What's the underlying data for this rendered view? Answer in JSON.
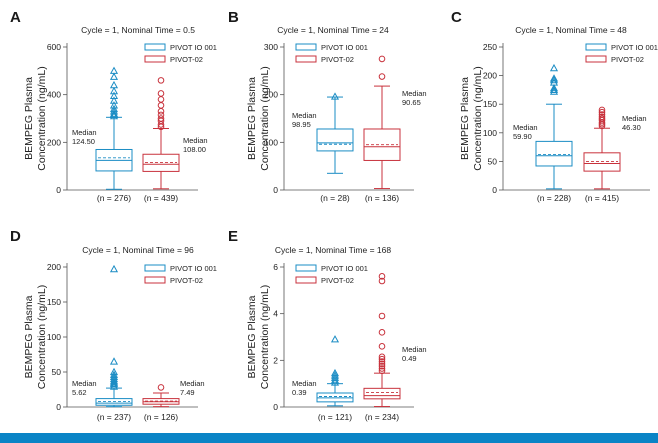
{
  "figure": {
    "accent_bar_color": "#0a84c6"
  },
  "colors": {
    "pivot_io_001": "#1a8cc4",
    "pivot_02": "#c8323c"
  },
  "chart_data": [
    {
      "type": "box",
      "panel_label": "A",
      "title": "Cycle = 1, Nominal Time = 0.5",
      "ylabel": [
        "BEMPEG Plasma",
        "Concentration (ng/mL)"
      ],
      "ylim": [
        0,
        600
      ],
      "yticks": [
        0,
        200,
        400,
        600
      ],
      "legend": [
        "PIVOT IO 001",
        "PIVOT-02"
      ],
      "series": [
        {
          "name": "PIVOT IO 001",
          "n_label": "(n = 276)",
          "median_label": [
            "Median",
            "124.50"
          ],
          "whisker_low": 3,
          "q1": 80,
          "median": 124.5,
          "mean": 135,
          "q3": 170,
          "whisker_high": 305,
          "outliers": [
            310,
            315,
            320,
            330,
            340,
            355,
            375,
            395,
            415,
            440,
            475,
            500
          ]
        },
        {
          "name": "PIVOT-02",
          "n_label": "(n = 439)",
          "median_label": [
            "Median",
            "108.00"
          ],
          "whisker_low": 5,
          "q1": 78,
          "median": 108,
          "mean": 115,
          "q3": 150,
          "whisker_high": 258,
          "outliers": [
            265,
            275,
            290,
            300,
            315,
            330,
            355,
            380,
            405,
            460
          ]
        }
      ]
    },
    {
      "type": "box",
      "panel_label": "B",
      "title": "Cycle = 1, Nominal Time = 24",
      "ylabel": [
        "BEMPEG Plasma",
        "Concentration (ng/mL)"
      ],
      "ylim": [
        0,
        300
      ],
      "yticks": [
        0,
        100,
        200,
        300
      ],
      "legend": [
        "PIVOT IO 001",
        "PIVOT-02"
      ],
      "series": [
        {
          "name": "PIVOT IO 001",
          "n_label": "(n = 28)",
          "median_label": [
            "Median",
            "98.95"
          ],
          "whisker_low": 35,
          "q1": 82,
          "median": 98.95,
          "mean": 96,
          "q3": 128,
          "whisker_high": 195,
          "outliers": [
            196
          ]
        },
        {
          "name": "PIVOT-02",
          "n_label": "(n = 136)",
          "median_label": [
            "Median",
            "90.65"
          ],
          "whisker_low": 3,
          "q1": 62,
          "median": 90.65,
          "mean": 95,
          "q3": 128,
          "whisker_high": 218,
          "outliers": [
            238,
            275
          ]
        }
      ]
    },
    {
      "type": "box",
      "panel_label": "C",
      "title": "Cycle = 1, Nominal Time = 48",
      "ylabel": [
        "BEMPEG Plasma",
        "Concentration (ng/mL)"
      ],
      "ylim": [
        0,
        250
      ],
      "yticks": [
        0,
        50,
        100,
        150,
        200,
        250
      ],
      "legend": [
        "PIVOT IO 001",
        "PIVOT-02"
      ],
      "series": [
        {
          "name": "PIVOT IO 001",
          "n_label": "(n = 228)",
          "median_label": [
            "Median",
            "59.90"
          ],
          "whisker_low": 2,
          "q1": 42,
          "median": 59.9,
          "mean": 62,
          "q3": 85,
          "whisker_high": 150,
          "outliers": [
            172,
            175,
            178,
            188,
            192,
            195,
            213
          ]
        },
        {
          "name": "PIVOT-02",
          "n_label": "(n = 415)",
          "median_label": [
            "Median",
            "46.30"
          ],
          "whisker_low": 2,
          "q1": 33,
          "median": 46.3,
          "mean": 50,
          "q3": 65,
          "whisker_high": 108,
          "outliers": [
            112,
            115,
            118,
            122,
            125,
            128,
            132,
            136,
            140
          ]
        }
      ]
    },
    {
      "type": "box",
      "panel_label": "D",
      "title": "Cycle = 1, Nominal Time = 96",
      "ylabel": [
        "BEMPEG Plasma",
        "Concentration (ng/mL)"
      ],
      "ylim": [
        0,
        200
      ],
      "yticks": [
        0,
        50,
        100,
        150,
        200
      ],
      "legend": [
        "PIVOT IO 001",
        "PIVOT-02"
      ],
      "series": [
        {
          "name": "PIVOT IO 001",
          "n_label": "(n = 237)",
          "median_label": [
            "Median",
            "5.62"
          ],
          "whisker_low": 0.5,
          "q1": 2.5,
          "median": 5.62,
          "mean": 8,
          "q3": 12,
          "whisker_high": 27,
          "outliers": [
            29,
            31,
            33,
            35,
            37,
            40,
            43,
            46,
            50,
            65,
            197
          ]
        },
        {
          "name": "PIVOT-02",
          "n_label": "(n = 126)",
          "median_label": [
            "Median",
            "7.49"
          ],
          "whisker_low": 0.5,
          "q1": 4,
          "median": 7.49,
          "mean": 8.5,
          "q3": 12,
          "whisker_high": 20,
          "outliers": [
            28
          ]
        }
      ]
    },
    {
      "type": "box",
      "panel_label": "E",
      "title": "Cycle = 1, Nominal Time = 168",
      "ylabel": [
        "BEMPEG Plasma",
        "Concentration (ng/mL)"
      ],
      "ylim": [
        0,
        6
      ],
      "yticks": [
        0,
        2,
        4,
        6
      ],
      "legend": [
        "PIVOT IO 001",
        "PIVOT-02"
      ],
      "series": [
        {
          "name": "PIVOT IO 001",
          "n_label": "(n = 121)",
          "median_label": [
            "Median",
            "0.39"
          ],
          "whisker_low": 0.05,
          "q1": 0.22,
          "median": 0.39,
          "mean": 0.45,
          "q3": 0.6,
          "whisker_high": 1.0,
          "outliers": [
            1.05,
            1.15,
            1.25,
            1.35,
            1.45,
            2.9
          ]
        },
        {
          "name": "PIVOT-02",
          "n_label": "(n = 234)",
          "median_label": [
            "Median",
            "0.49"
          ],
          "whisker_low": 0.02,
          "q1": 0.35,
          "median": 0.49,
          "mean": 0.62,
          "q3": 0.8,
          "whisker_high": 1.45,
          "outliers": [
            1.55,
            1.65,
            1.75,
            1.85,
            1.95,
            2.05,
            2.15,
            2.6,
            3.2,
            3.9,
            5.4,
            5.6
          ]
        }
      ]
    }
  ]
}
